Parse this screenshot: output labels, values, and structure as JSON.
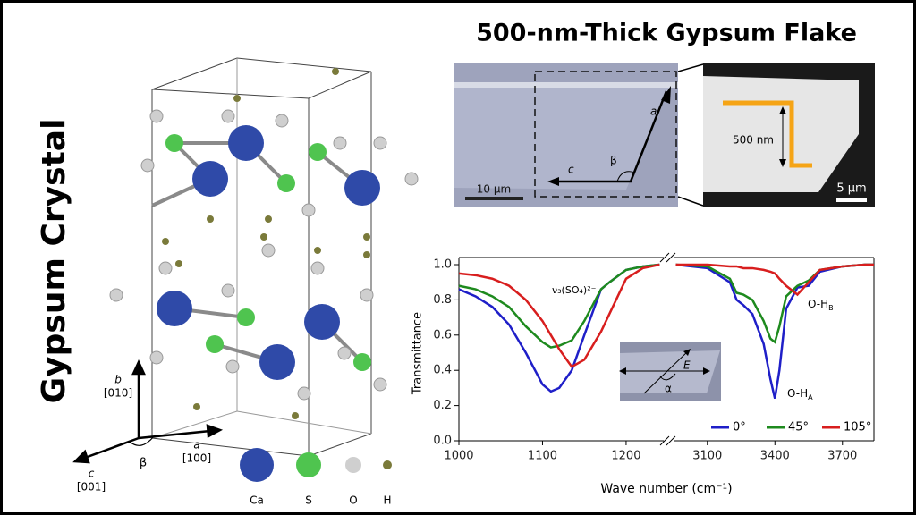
{
  "title": "500-nm-Thick Gypsum Flake",
  "crystal": {
    "label": "Gypsum Crystal",
    "axis_labels": [
      {
        "name": "b",
        "dir": "[010]"
      },
      {
        "name": "a",
        "dir": "[100]"
      },
      {
        "name": "c",
        "dir": "[001]"
      }
    ],
    "angle": "β",
    "atoms": [
      "Ca",
      "S",
      "O",
      "H"
    ]
  },
  "micrographs": {
    "left": {
      "edge_a": "a",
      "edge_c": "c",
      "angle": "β",
      "scale": "10 µm"
    },
    "right": {
      "thickness": "500 nm",
      "scale": "5 µm"
    }
  },
  "chart_data": {
    "type": "line",
    "xlabel": "Wave number (cm⁻¹)",
    "ylabel": "Transmittance",
    "ylim": [
      0,
      1
    ],
    "yticks": [
      {
        "value": 0,
        "label": "0.0"
      },
      {
        "value": 0.2,
        "label": "0.2"
      },
      {
        "value": 0.4,
        "label": "0.4"
      },
      {
        "value": 0.6,
        "label": "0.6"
      },
      {
        "value": 0.8,
        "label": "0.8"
      },
      {
        "value": 1,
        "label": "1.0"
      }
    ],
    "xsegments": [
      {
        "xlim": [
          1000,
          1245
        ],
        "xticks": [
          1000,
          1100,
          1200
        ]
      },
      {
        "xlim": [
          2950,
          3840
        ],
        "xticks": [
          3100,
          3400,
          3700
        ]
      }
    ],
    "x": [
      1000,
      1020,
      1040,
      1060,
      1080,
      1100,
      1110,
      1120,
      1135,
      1150,
      1170,
      1180,
      1200,
      1220,
      1240,
      2960,
      3100,
      3200,
      3230,
      3260,
      3300,
      3350,
      3380,
      3400,
      3420,
      3450,
      3500,
      3550,
      3600,
      3700,
      3800,
      3840
    ],
    "series": [
      {
        "name": "0°",
        "color": "#1f1fc8",
        "values": [
          0.86,
          0.82,
          0.76,
          0.66,
          0.5,
          0.32,
          0.28,
          0.3,
          0.4,
          0.6,
          0.86,
          0.9,
          0.97,
          0.99,
          1.0,
          1.0,
          0.98,
          0.9,
          0.8,
          0.77,
          0.72,
          0.55,
          0.35,
          0.24,
          0.4,
          0.75,
          0.87,
          0.88,
          0.96,
          0.99,
          1.0,
          1.0
        ]
      },
      {
        "name": "45°",
        "color": "#1e8a1e",
        "values": [
          0.88,
          0.86,
          0.82,
          0.76,
          0.65,
          0.56,
          0.53,
          0.54,
          0.57,
          0.68,
          0.86,
          0.9,
          0.97,
          0.99,
          1.0,
          1.0,
          0.99,
          0.92,
          0.84,
          0.83,
          0.8,
          0.68,
          0.58,
          0.56,
          0.65,
          0.82,
          0.88,
          0.91,
          0.97,
          0.99,
          1.0,
          1.0
        ]
      },
      {
        "name": "105°",
        "color": "#d81e1e",
        "values": [
          0.95,
          0.94,
          0.92,
          0.88,
          0.8,
          0.68,
          0.6,
          0.52,
          0.42,
          0.46,
          0.62,
          0.72,
          0.92,
          0.98,
          1.0,
          1.0,
          1.0,
          0.99,
          0.99,
          0.98,
          0.98,
          0.97,
          0.96,
          0.95,
          0.92,
          0.88,
          0.83,
          0.9,
          0.97,
          0.99,
          1.0,
          1.0
        ]
      }
    ],
    "annotations": [
      {
        "text": "ν₃(SO₄)²⁻"
      },
      {
        "text": "O-H",
        "sub": "B"
      },
      {
        "text": "O-H",
        "sub": "A"
      }
    ],
    "inset": {
      "field": "E",
      "angle": "α"
    }
  }
}
